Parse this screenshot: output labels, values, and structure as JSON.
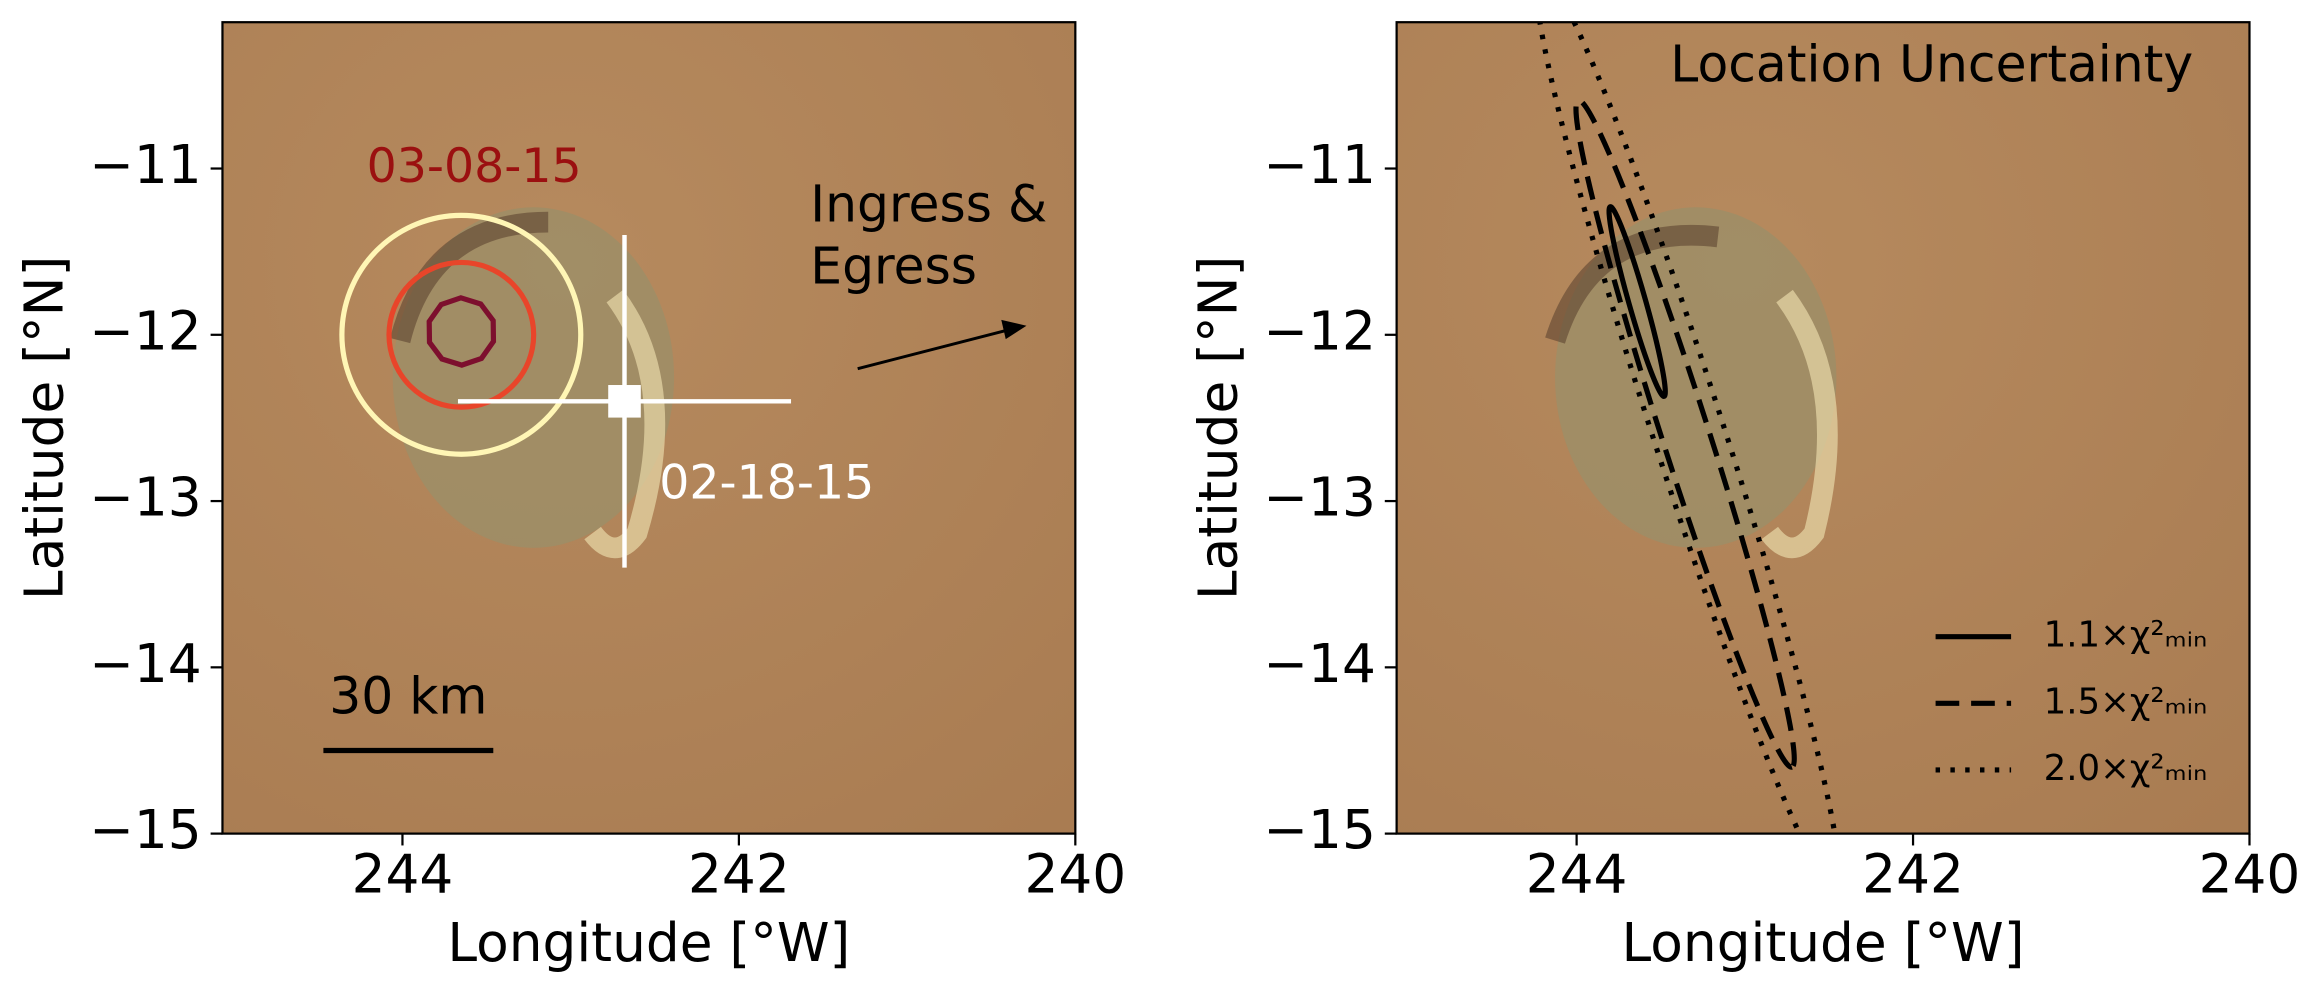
{
  "chart_data": [
    {
      "type": "map",
      "xlabel": "Longitude [°W]",
      "ylabel": "Latitude [°N]",
      "xlim": [
        245.07,
        240
      ],
      "ylim": [
        -15,
        -10.12
      ],
      "xticks": [
        244,
        242,
        240
      ],
      "yticks": [
        {
          "value": -11,
          "label": "−11"
        },
        {
          "value": -12,
          "label": "−12"
        },
        {
          "value": -13,
          "label": "−13"
        },
        {
          "value": -14,
          "label": "−14"
        },
        {
          "value": -15,
          "label": "−15"
        }
      ],
      "contours": [
        {
          "color": "#fff6b5",
          "lon": 243.65,
          "lat": -12.0,
          "radius": 0.71
        },
        {
          "color": "#e8452a",
          "lon": 243.65,
          "lat": -12.0,
          "radius": 0.43
        },
        {
          "color": "#7d0f2e",
          "lon": 243.65,
          "lat": -11.98,
          "radius": 0.2
        }
      ],
      "contour_label": {
        "text": "03-08-15",
        "color": "#9b1010"
      },
      "point": {
        "lon": 242.68,
        "lat": -12.4,
        "lon_err": 0.99,
        "lat_err": 1.0,
        "color": "#ffffff",
        "label": "02-18-15"
      },
      "annotation": "Ingress &\nEgress",
      "scalebar": {
        "label": "30 km",
        "lon": [
          244.47,
          243.46
        ],
        "lat": -14.5
      }
    },
    {
      "type": "map",
      "title": "Location Uncertainty",
      "xlabel": "Longitude [°W]",
      "ylabel": "Latitude [°N]",
      "xlim": [
        245.07,
        240
      ],
      "ylim": [
        -15,
        -10.12
      ],
      "xticks": [
        244,
        242,
        240
      ],
      "yticks": [
        {
          "value": -11,
          "label": "−11"
        },
        {
          "value": -12,
          "label": "−12"
        },
        {
          "value": -13,
          "label": "−13"
        },
        {
          "value": -14,
          "label": "−14"
        },
        {
          "value": -15,
          "label": "−15"
        }
      ],
      "legend": "lower right",
      "series": [
        {
          "name": "1.1×χ²ₘᵢₙ",
          "style": "solid",
          "color": "#000000",
          "lon": [
            243.8,
            243.48
          ],
          "lat": [
            -11.23,
            -12.37
          ],
          "half_width": 0.05
        },
        {
          "name": "1.5×χ²ₘᵢₙ",
          "style": "dashed",
          "color": "#000000",
          "lon": [
            243.99,
            242.72
          ],
          "lat": [
            -10.59,
            -14.6
          ],
          "half_width": 0.14
        },
        {
          "name": "2.0×χ²ₘᵢₙ",
          "style": "dotted",
          "color": "#000000",
          "lon": [
            244.22,
            242.46
          ],
          "lat": [
            -9.81,
            -15.33
          ],
          "half_width": 0.21
        }
      ]
    }
  ]
}
